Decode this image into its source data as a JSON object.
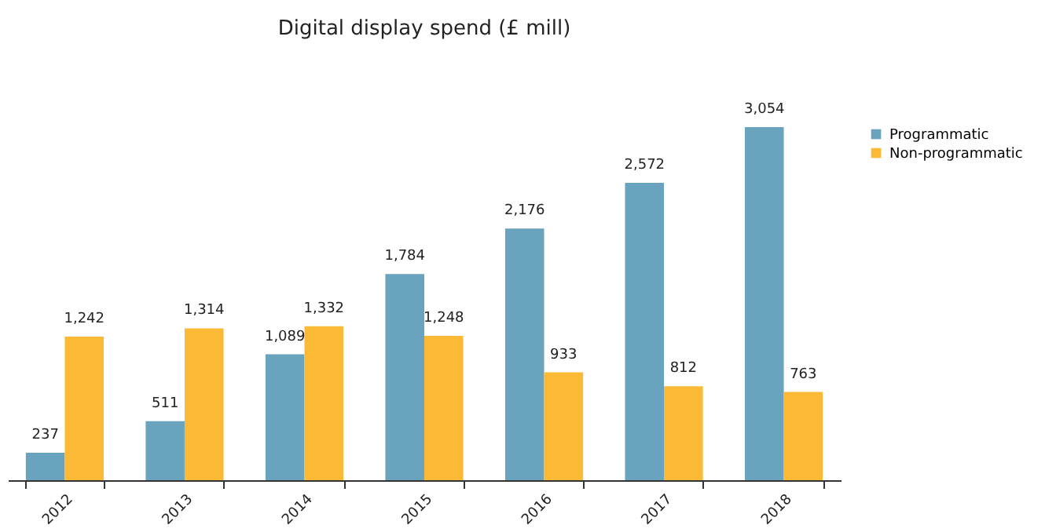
{
  "chart_data": {
    "type": "bar",
    "title": "Digital display spend (£ mill)",
    "categories": [
      "2012",
      "2013",
      "2014",
      "2015",
      "2016",
      "2017",
      "2018"
    ],
    "series": [
      {
        "name": "Programmatic",
        "color": "#6aa3be",
        "values": [
          237,
          511,
          1089,
          1784,
          2176,
          2572,
          3054
        ],
        "value_labels": [
          "237",
          "511",
          "1,089",
          "1,784",
          "2,176",
          "2,572",
          "3,054"
        ]
      },
      {
        "name": "Non-programmatic",
        "color": "#fbb935",
        "values": [
          1242,
          1314,
          1332,
          1248,
          933,
          812,
          763
        ],
        "value_labels": [
          "1,242",
          "1,314",
          "1,332",
          "1,248",
          "933",
          "812",
          "763"
        ]
      }
    ],
    "legend": "right",
    "tick_labels": "x",
    "grid": false
  }
}
